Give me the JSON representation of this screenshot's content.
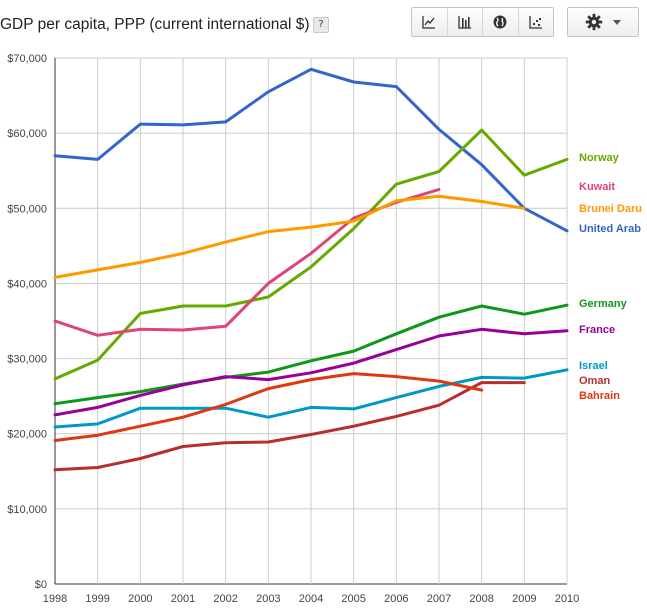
{
  "header": {
    "title": "GDP per capita, PPP (current international $)",
    "help_label": "?"
  },
  "toolbar": {
    "buttons": [
      "line-chart-icon",
      "bar-chart-icon",
      "map-globe-icon",
      "scatter-plot-icon"
    ],
    "settings": "gear-icon"
  },
  "chart_data": {
    "type": "line",
    "title": "GDP per capita, PPP (current international $)",
    "x": [
      1998,
      1999,
      2000,
      2001,
      2002,
      2003,
      2004,
      2005,
      2006,
      2007,
      2008,
      2009,
      2010
    ],
    "ylim": [
      0,
      70000
    ],
    "yticks": [
      0,
      10000,
      20000,
      30000,
      40000,
      50000,
      60000,
      70000
    ],
    "ytick_labels": [
      "$0",
      "$10,000",
      "$20,000",
      "$30,000",
      "$40,000",
      "$50,000",
      "$60,000",
      "$70,000"
    ],
    "grid": true,
    "legend": "right",
    "series": [
      {
        "name": "United Arab",
        "color": "#3366cc",
        "values": [
          57000,
          56500,
          61200,
          61100,
          61500,
          65500,
          68500,
          66800,
          66200,
          60500,
          55800,
          50000,
          47000
        ]
      },
      {
        "name": "Norway",
        "color": "#66aa00",
        "values": [
          27300,
          29800,
          36000,
          37000,
          37000,
          38200,
          42200,
          47300,
          53200,
          54900,
          60400,
          54400,
          56500
        ]
      },
      {
        "name": "Kuwait",
        "color": "#dd4477",
        "values": [
          35000,
          33100,
          33900,
          33800,
          34300,
          40000,
          44000,
          48700,
          50800,
          52500,
          null,
          null,
          null
        ]
      },
      {
        "name": "Brunei Daru",
        "color": "#ff9900",
        "values": [
          40800,
          41800,
          42800,
          44000,
          45500,
          46900,
          47500,
          48300,
          51000,
          51600,
          50900,
          50000,
          null
        ]
      },
      {
        "name": "Germany",
        "color": "#109618",
        "values": [
          24000,
          24800,
          25600,
          26600,
          27500,
          28200,
          29700,
          31000,
          33300,
          35500,
          37000,
          35900,
          37100
        ]
      },
      {
        "name": "France",
        "color": "#990099",
        "values": [
          22500,
          23500,
          25100,
          26500,
          27600,
          27200,
          28100,
          29400,
          31200,
          33000,
          33900,
          33300,
          33700
        ]
      },
      {
        "name": "Israel",
        "color": "#0099c6",
        "values": [
          20900,
          21300,
          23400,
          23400,
          23400,
          22200,
          23500,
          23300,
          24800,
          26300,
          27500,
          27400,
          28500
        ]
      },
      {
        "name": "Oman",
        "color": "#b82e2e",
        "values": [
          15200,
          15500,
          16700,
          18300,
          18800,
          18900,
          19900,
          21000,
          22300,
          23800,
          26800,
          26800,
          null
        ]
      },
      {
        "name": "Bahrain",
        "color": "#dc3912",
        "values": [
          19100,
          19800,
          21000,
          22200,
          23900,
          26000,
          27200,
          28000,
          27600,
          27000,
          25800,
          null,
          null
        ]
      }
    ],
    "legend_entries": [
      "Norway",
      "Kuwait",
      "Brunei Daru",
      "United Arab",
      "Germany",
      "France",
      "Israel",
      "Oman",
      "Bahrain"
    ]
  }
}
